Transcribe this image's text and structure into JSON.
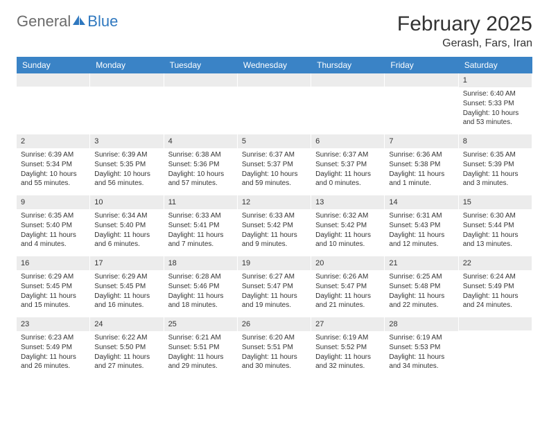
{
  "logo": {
    "text1": "General",
    "text2": "Blue"
  },
  "title": "February 2025",
  "location": "Gerash, Fars, Iran",
  "colors": {
    "header_bg": "#3a83c6",
    "daynum_bg": "#ececec",
    "text": "#333333",
    "logo_gray": "#6b6b6b",
    "logo_blue": "#2f78bf"
  },
  "weekdays": [
    "Sunday",
    "Monday",
    "Tuesday",
    "Wednesday",
    "Thursday",
    "Friday",
    "Saturday"
  ],
  "grid": [
    [
      {
        "empty": true
      },
      {
        "empty": true
      },
      {
        "empty": true
      },
      {
        "empty": true
      },
      {
        "empty": true
      },
      {
        "empty": true
      },
      {
        "day": "1",
        "sunrise": "Sunrise: 6:40 AM",
        "sunset": "Sunset: 5:33 PM",
        "daylight": "Daylight: 10 hours and 53 minutes."
      }
    ],
    [
      {
        "day": "2",
        "sunrise": "Sunrise: 6:39 AM",
        "sunset": "Sunset: 5:34 PM",
        "daylight": "Daylight: 10 hours and 55 minutes."
      },
      {
        "day": "3",
        "sunrise": "Sunrise: 6:39 AM",
        "sunset": "Sunset: 5:35 PM",
        "daylight": "Daylight: 10 hours and 56 minutes."
      },
      {
        "day": "4",
        "sunrise": "Sunrise: 6:38 AM",
        "sunset": "Sunset: 5:36 PM",
        "daylight": "Daylight: 10 hours and 57 minutes."
      },
      {
        "day": "5",
        "sunrise": "Sunrise: 6:37 AM",
        "sunset": "Sunset: 5:37 PM",
        "daylight": "Daylight: 10 hours and 59 minutes."
      },
      {
        "day": "6",
        "sunrise": "Sunrise: 6:37 AM",
        "sunset": "Sunset: 5:37 PM",
        "daylight": "Daylight: 11 hours and 0 minutes."
      },
      {
        "day": "7",
        "sunrise": "Sunrise: 6:36 AM",
        "sunset": "Sunset: 5:38 PM",
        "daylight": "Daylight: 11 hours and 1 minute."
      },
      {
        "day": "8",
        "sunrise": "Sunrise: 6:35 AM",
        "sunset": "Sunset: 5:39 PM",
        "daylight": "Daylight: 11 hours and 3 minutes."
      }
    ],
    [
      {
        "day": "9",
        "sunrise": "Sunrise: 6:35 AM",
        "sunset": "Sunset: 5:40 PM",
        "daylight": "Daylight: 11 hours and 4 minutes."
      },
      {
        "day": "10",
        "sunrise": "Sunrise: 6:34 AM",
        "sunset": "Sunset: 5:40 PM",
        "daylight": "Daylight: 11 hours and 6 minutes."
      },
      {
        "day": "11",
        "sunrise": "Sunrise: 6:33 AM",
        "sunset": "Sunset: 5:41 PM",
        "daylight": "Daylight: 11 hours and 7 minutes."
      },
      {
        "day": "12",
        "sunrise": "Sunrise: 6:33 AM",
        "sunset": "Sunset: 5:42 PM",
        "daylight": "Daylight: 11 hours and 9 minutes."
      },
      {
        "day": "13",
        "sunrise": "Sunrise: 6:32 AM",
        "sunset": "Sunset: 5:42 PM",
        "daylight": "Daylight: 11 hours and 10 minutes."
      },
      {
        "day": "14",
        "sunrise": "Sunrise: 6:31 AM",
        "sunset": "Sunset: 5:43 PM",
        "daylight": "Daylight: 11 hours and 12 minutes."
      },
      {
        "day": "15",
        "sunrise": "Sunrise: 6:30 AM",
        "sunset": "Sunset: 5:44 PM",
        "daylight": "Daylight: 11 hours and 13 minutes."
      }
    ],
    [
      {
        "day": "16",
        "sunrise": "Sunrise: 6:29 AM",
        "sunset": "Sunset: 5:45 PM",
        "daylight": "Daylight: 11 hours and 15 minutes."
      },
      {
        "day": "17",
        "sunrise": "Sunrise: 6:29 AM",
        "sunset": "Sunset: 5:45 PM",
        "daylight": "Daylight: 11 hours and 16 minutes."
      },
      {
        "day": "18",
        "sunrise": "Sunrise: 6:28 AM",
        "sunset": "Sunset: 5:46 PM",
        "daylight": "Daylight: 11 hours and 18 minutes."
      },
      {
        "day": "19",
        "sunrise": "Sunrise: 6:27 AM",
        "sunset": "Sunset: 5:47 PM",
        "daylight": "Daylight: 11 hours and 19 minutes."
      },
      {
        "day": "20",
        "sunrise": "Sunrise: 6:26 AM",
        "sunset": "Sunset: 5:47 PM",
        "daylight": "Daylight: 11 hours and 21 minutes."
      },
      {
        "day": "21",
        "sunrise": "Sunrise: 6:25 AM",
        "sunset": "Sunset: 5:48 PM",
        "daylight": "Daylight: 11 hours and 22 minutes."
      },
      {
        "day": "22",
        "sunrise": "Sunrise: 6:24 AM",
        "sunset": "Sunset: 5:49 PM",
        "daylight": "Daylight: 11 hours and 24 minutes."
      }
    ],
    [
      {
        "day": "23",
        "sunrise": "Sunrise: 6:23 AM",
        "sunset": "Sunset: 5:49 PM",
        "daylight": "Daylight: 11 hours and 26 minutes."
      },
      {
        "day": "24",
        "sunrise": "Sunrise: 6:22 AM",
        "sunset": "Sunset: 5:50 PM",
        "daylight": "Daylight: 11 hours and 27 minutes."
      },
      {
        "day": "25",
        "sunrise": "Sunrise: 6:21 AM",
        "sunset": "Sunset: 5:51 PM",
        "daylight": "Daylight: 11 hours and 29 minutes."
      },
      {
        "day": "26",
        "sunrise": "Sunrise: 6:20 AM",
        "sunset": "Sunset: 5:51 PM",
        "daylight": "Daylight: 11 hours and 30 minutes."
      },
      {
        "day": "27",
        "sunrise": "Sunrise: 6:19 AM",
        "sunset": "Sunset: 5:52 PM",
        "daylight": "Daylight: 11 hours and 32 minutes."
      },
      {
        "day": "28",
        "sunrise": "Sunrise: 6:19 AM",
        "sunset": "Sunset: 5:53 PM",
        "daylight": "Daylight: 11 hours and 34 minutes."
      },
      {
        "empty": true
      }
    ]
  ]
}
